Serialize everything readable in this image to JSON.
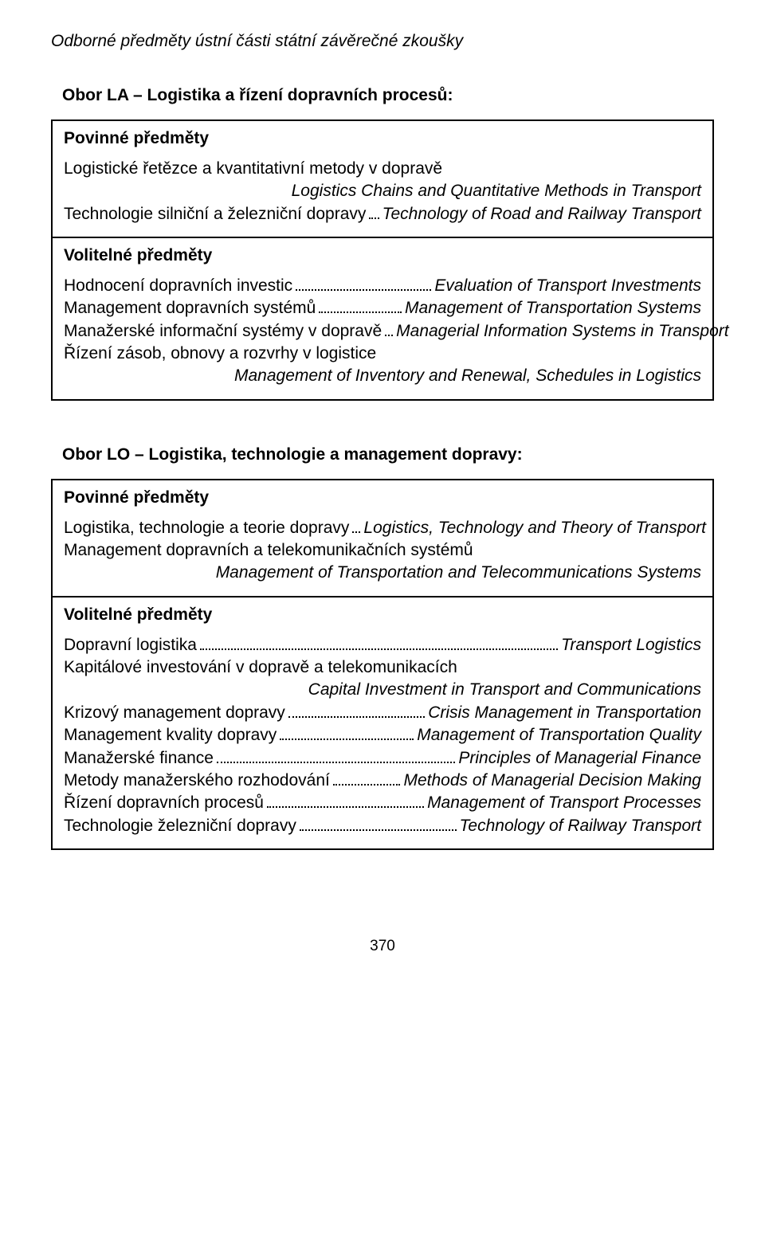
{
  "page_title": "Odborné předměty ústní části státní závěrečné zkoušky",
  "page_number": "370",
  "sections": [
    {
      "heading": "Obor LA – Logistika a řízení dopravních procesů:",
      "compulsory_label": "Povinné předměty",
      "compulsory_items": [
        {
          "type": "plain",
          "cz": "Logistické řetězce a kvantitativní metody v dopravě"
        },
        {
          "type": "right",
          "en": "Logistics Chains and Quantitative Methods in Transport"
        },
        {
          "type": "dotted",
          "cz": "Technologie silniční a železniční dopravy",
          "en": "Technology of Road and Railway Transport"
        }
      ],
      "elective_label": "Volitelné předměty",
      "elective_items": [
        {
          "type": "dotted",
          "cz": "Hodnocení dopravních investic",
          "en": "Evaluation of Transport Investments"
        },
        {
          "type": "dotted",
          "cz": "Management dopravních systémů",
          "en": "Management of Transportation Systems"
        },
        {
          "type": "dotted",
          "cz": "Manažerské informační systémy v dopravě",
          "en": "Managerial Information Systems in Transport"
        },
        {
          "type": "plain",
          "cz": "Řízení zásob, obnovy a rozvrhy v logistice"
        },
        {
          "type": "right",
          "en": "Management of Inventory and Renewal, Schedules in Logistics"
        }
      ]
    },
    {
      "heading": "Obor LO – Logistika, technologie a management dopravy:",
      "compulsory_label": "Povinné předměty",
      "compulsory_items": [
        {
          "type": "dotted",
          "cz": "Logistika, technologie a teorie dopravy",
          "en": "Logistics, Technology and Theory of Transport"
        },
        {
          "type": "plain",
          "cz": "Management dopravních a telekomunikačních systémů"
        },
        {
          "type": "right",
          "en": "Management of Transportation and Telecommunications Systems"
        }
      ],
      "elective_label": "Volitelné předměty",
      "elective_items": [
        {
          "type": "dotted",
          "cz": "Dopravní logistika",
          "en": "Transport Logistics"
        },
        {
          "type": "plain",
          "cz": "Kapitálové investování v dopravě a telekomunikacích"
        },
        {
          "type": "right",
          "en": "Capital Investment in Transport and Communications"
        },
        {
          "type": "dotted",
          "cz": "Krizový management dopravy",
          "en": "Crisis Management in Transportation"
        },
        {
          "type": "dotted",
          "cz": "Management kvality dopravy",
          "en": "Management of Transportation Quality"
        },
        {
          "type": "dotted",
          "cz": "Manažerské finance",
          "en": "Principles of Managerial Finance"
        },
        {
          "type": "dotted",
          "cz": "Metody manažerského rozhodování",
          "en": "Methods of Managerial Decision Making"
        },
        {
          "type": "dotted",
          "cz": "Řízení dopravních procesů",
          "en": "Management of Transport Processes"
        },
        {
          "type": "dotted",
          "cz": "Technologie železniční dopravy",
          "en": "Technology of Railway Transport"
        }
      ]
    }
  ]
}
